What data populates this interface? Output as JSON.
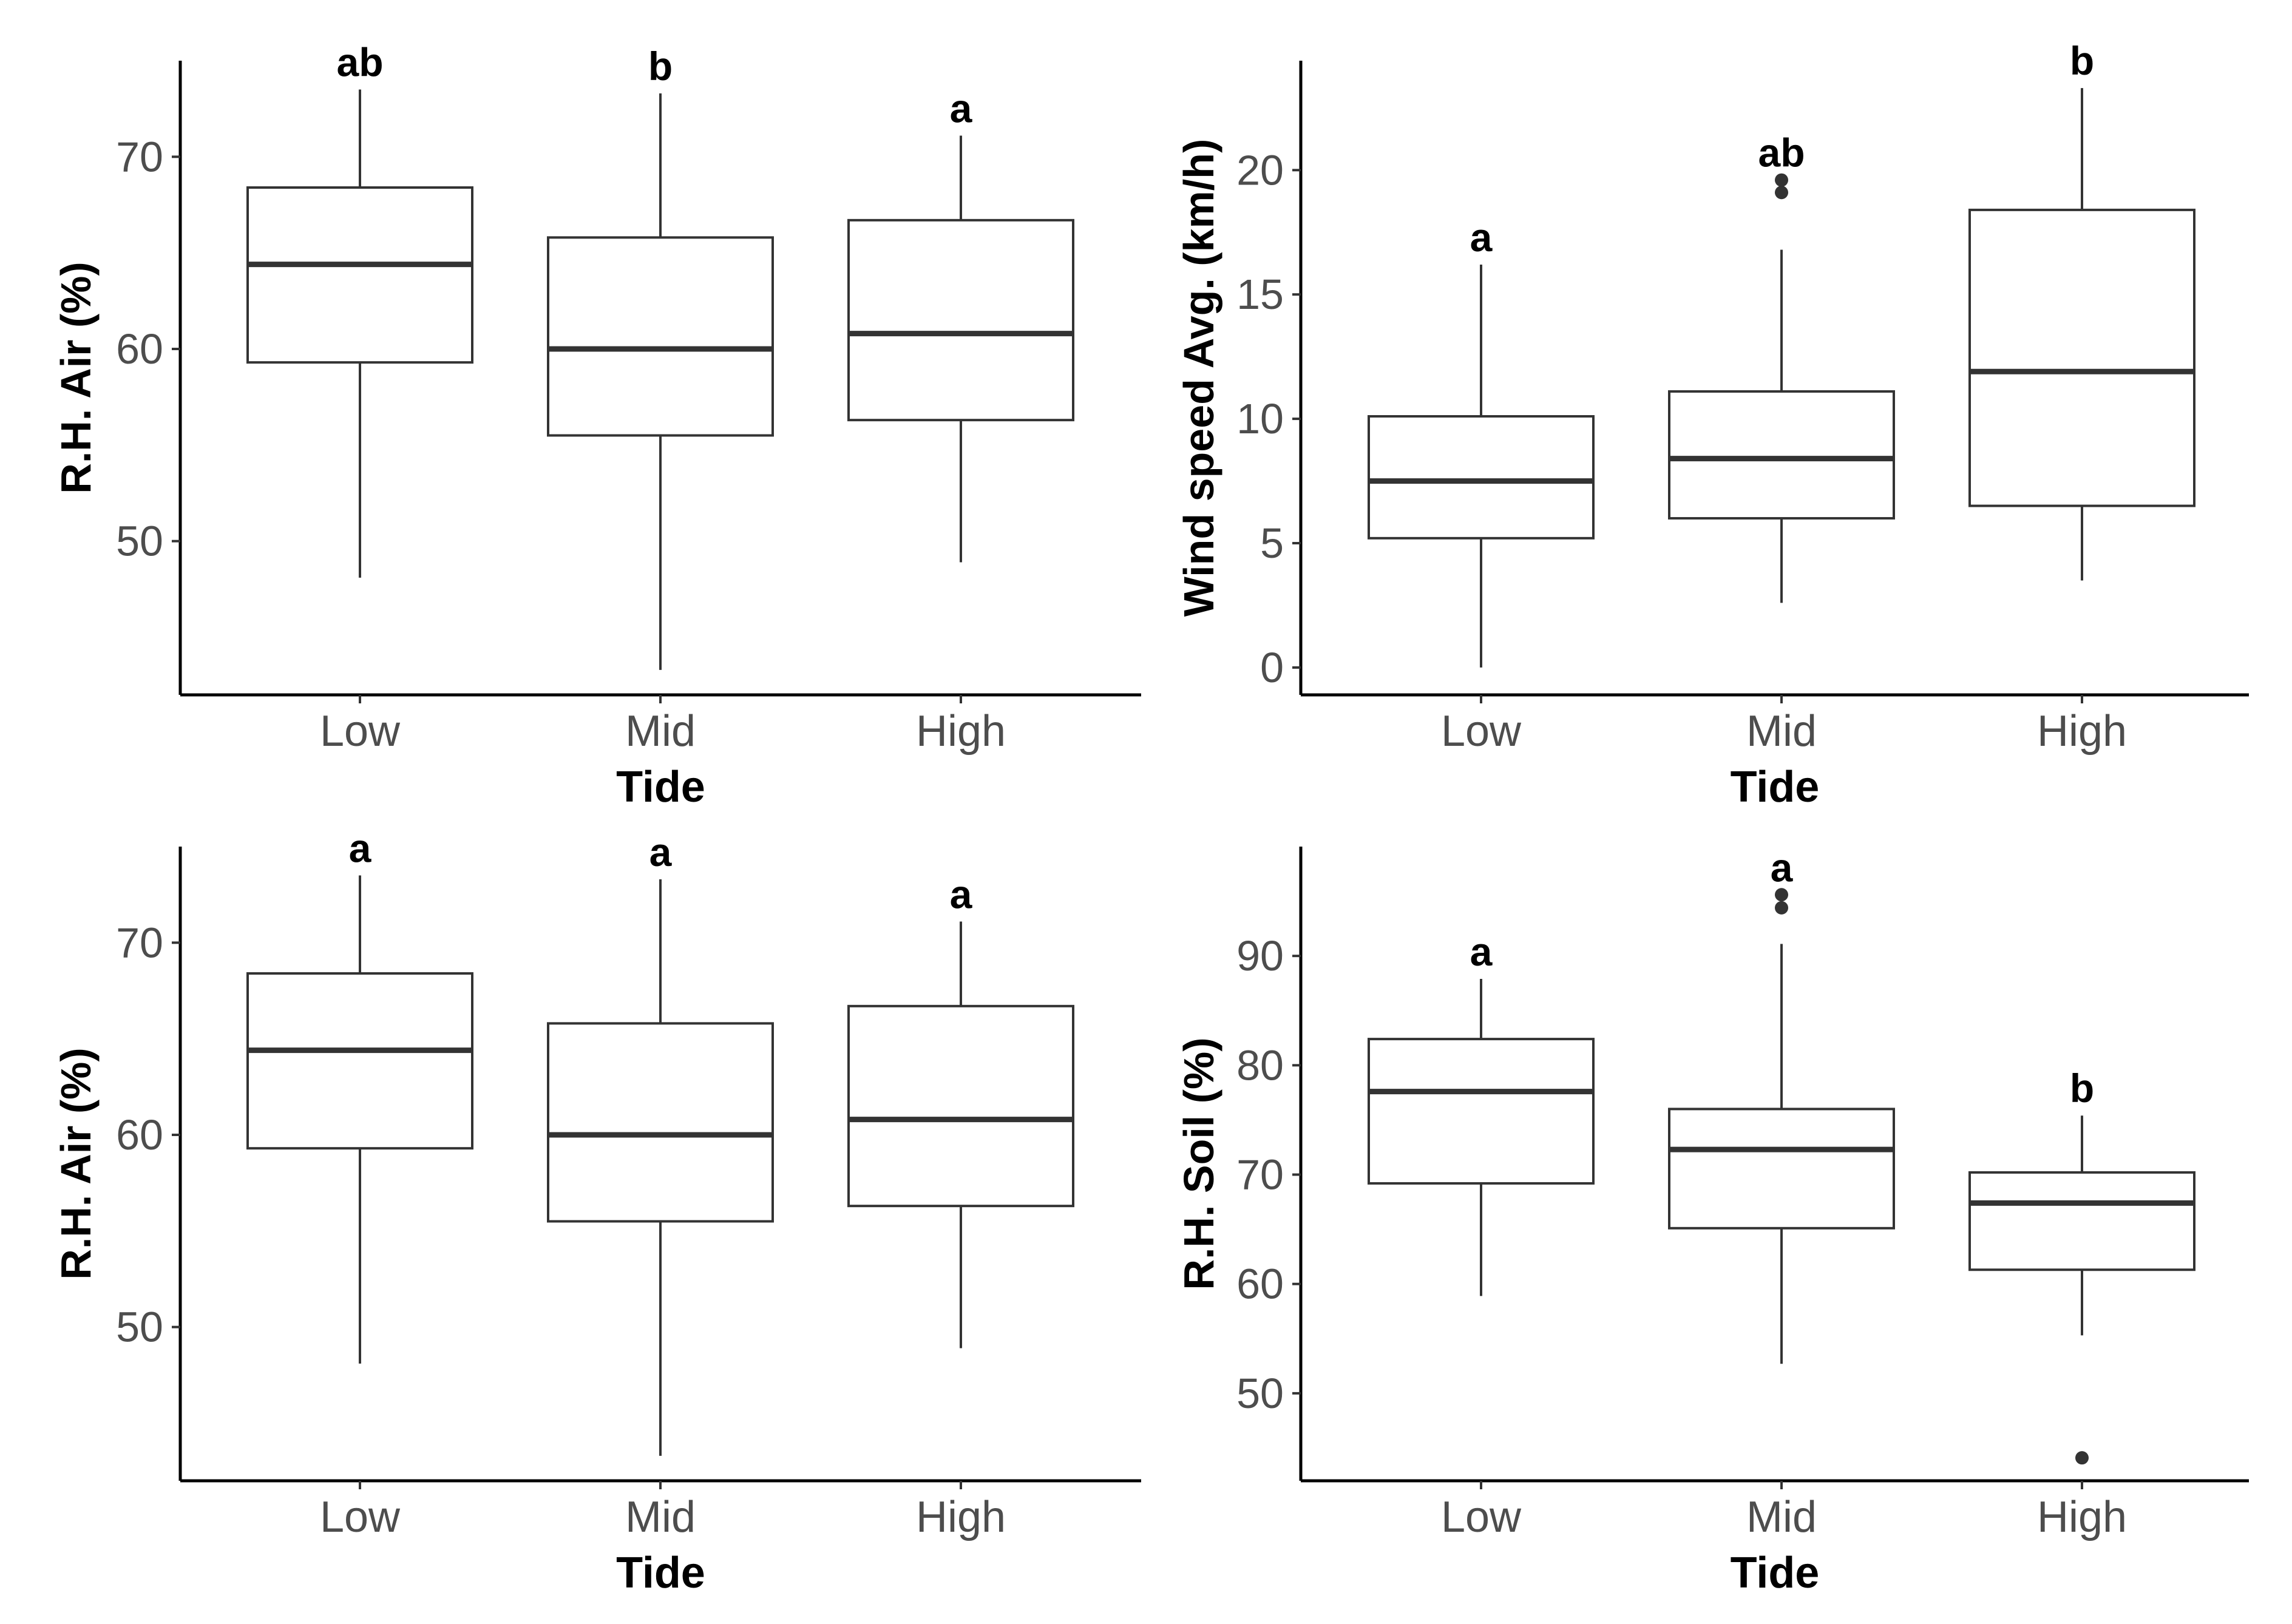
{
  "colors": {
    "box_stroke": "#333333",
    "axis": "#000000",
    "tick_label": "#4d4d4d",
    "outlier": "#333333"
  },
  "chart_data": [
    {
      "type": "boxplot",
      "xlabel": "Tide",
      "ylabel": "R.H. Air (%)",
      "categories": [
        "Low",
        "Mid",
        "High"
      ],
      "ylim": [
        42,
        75
      ],
      "yticks": [
        50,
        60,
        70
      ],
      "boxes": [
        {
          "category": "Low",
          "whisker_low": 48.1,
          "q1": 59.3,
          "median": 64.4,
          "q3": 68.4,
          "whisker_high": 73.5,
          "outliers": [],
          "letter": "ab"
        },
        {
          "category": "Mid",
          "whisker_low": 43.3,
          "q1": 55.5,
          "median": 60.0,
          "q3": 65.8,
          "whisker_high": 73.3,
          "outliers": [],
          "letter": "b"
        },
        {
          "category": "High",
          "whisker_low": 48.9,
          "q1": 56.3,
          "median": 60.8,
          "q3": 66.7,
          "whisker_high": 71.1,
          "outliers": [],
          "letter": "a"
        }
      ]
    },
    {
      "type": "boxplot",
      "xlabel": "Tide",
      "ylabel": "Wind speed Avg. (km/h)",
      "categories": [
        "Low",
        "Mid",
        "High"
      ],
      "ylim": [
        -1.1,
        24.4
      ],
      "yticks": [
        0,
        5,
        10,
        15,
        20
      ],
      "boxes": [
        {
          "category": "Low",
          "whisker_low": 0.0,
          "q1": 5.2,
          "median": 7.5,
          "q3": 10.1,
          "whisker_high": 16.2,
          "outliers": [],
          "letter": "a"
        },
        {
          "category": "Mid",
          "whisker_low": 2.6,
          "q1": 6.0,
          "median": 8.4,
          "q3": 11.1,
          "whisker_high": 16.8,
          "outliers": [
            19.1,
            19.6
          ],
          "letter": "ab"
        },
        {
          "category": "High",
          "whisker_low": 3.5,
          "q1": 6.5,
          "median": 11.9,
          "q3": 18.4,
          "whisker_high": 23.3,
          "outliers": [],
          "letter": "b"
        }
      ]
    },
    {
      "type": "boxplot",
      "xlabel": "Tide",
      "ylabel": "R.H. Air (%)",
      "categories": [
        "Low",
        "Mid",
        "High"
      ],
      "ylim": [
        42,
        75
      ],
      "yticks": [
        50,
        60,
        70
      ],
      "boxes": [
        {
          "category": "Low",
          "whisker_low": 48.1,
          "q1": 59.3,
          "median": 64.4,
          "q3": 68.4,
          "whisker_high": 73.5,
          "outliers": [],
          "letter": "a"
        },
        {
          "category": "Mid",
          "whisker_low": 43.3,
          "q1": 55.5,
          "median": 60.0,
          "q3": 65.8,
          "whisker_high": 73.3,
          "outliers": [],
          "letter": "a"
        },
        {
          "category": "High",
          "whisker_low": 48.9,
          "q1": 56.3,
          "median": 60.8,
          "q3": 66.7,
          "whisker_high": 71.1,
          "outliers": [],
          "letter": "a"
        }
      ]
    },
    {
      "type": "boxplot",
      "xlabel": "Tide",
      "ylabel": "R.H. Soil (%)",
      "categories": [
        "Low",
        "Mid",
        "High"
      ],
      "ylim": [
        42,
        100
      ],
      "yticks": [
        50,
        60,
        70,
        80,
        90
      ],
      "boxes": [
        {
          "category": "Low",
          "whisker_low": 58.9,
          "q1": 69.2,
          "median": 77.6,
          "q3": 82.4,
          "whisker_high": 87.9,
          "outliers": [],
          "letter": "a"
        },
        {
          "category": "Mid",
          "whisker_low": 52.7,
          "q1": 65.1,
          "median": 72.3,
          "q3": 76.0,
          "whisker_high": 91.1,
          "outliers": [
            94.4,
            95.6
          ],
          "letter": "a"
        },
        {
          "category": "High",
          "whisker_low": 55.3,
          "q1": 61.3,
          "median": 67.4,
          "q3": 70.2,
          "whisker_high": 75.4,
          "outliers": [
            44.1
          ],
          "letter": "b"
        }
      ]
    }
  ]
}
